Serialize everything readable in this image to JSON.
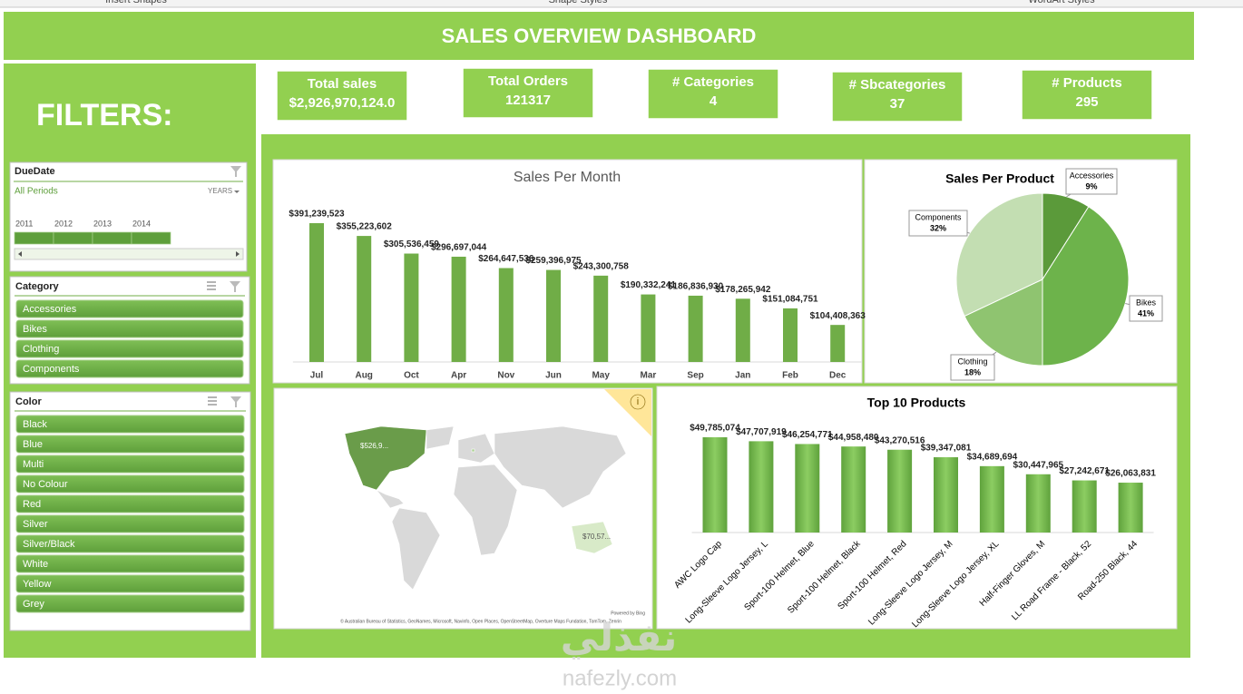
{
  "ribbon": [
    "Insert Shapes",
    "Shape Styles",
    "WordArt Styles"
  ],
  "header": {
    "title": "SALES OVERVIEW DASHBOARD"
  },
  "filters": {
    "title": "FILTERS:",
    "due_date": {
      "title": "DueDate",
      "selection": "All Periods",
      "level": "YEARS",
      "years": [
        2011,
        2012,
        2013,
        2014
      ]
    },
    "category": {
      "title": "Category",
      "items": [
        "Accessories",
        "Bikes",
        "Clothing",
        "Components"
      ]
    },
    "color": {
      "title": "Color",
      "items": [
        "Black",
        "Blue",
        "Multi",
        "No Colour",
        "Red",
        "Silver",
        "Silver/Black",
        "White",
        "Yellow",
        "Grey"
      ]
    }
  },
  "kpis": [
    {
      "label": "Total sales",
      "value": "$2,926,970,124.0"
    },
    {
      "label": "Total Orders",
      "value": 121317
    },
    {
      "label": "# Categories",
      "value": 4
    },
    {
      "label": "# Sbcategories",
      "value": 37
    },
    {
      "label": "# Products",
      "value": 295
    }
  ],
  "chart_data": [
    {
      "type": "bar",
      "title": "Sales Per Month",
      "categories": [
        "Jul",
        "Aug",
        "Oct",
        "Apr",
        "Nov",
        "Jun",
        "May",
        "Mar",
        "Sep",
        "Jan",
        "Feb",
        "Dec"
      ],
      "values": [
        391239523,
        355223602,
        305536459,
        296697044,
        264647536,
        259396975,
        243300758,
        190332241,
        186836930,
        178265942,
        151084751,
        104408363
      ],
      "value_labels": [
        "$391,239,523",
        "$355,223,602",
        "$305,536,459",
        "$296,697,044",
        "$264,647,536",
        "$259,396,975",
        "$243,300,758",
        "$190,332,241",
        "$186,836,930",
        "$178,265,942",
        "$151,084,751",
        "$104,408,363"
      ],
      "color": "#70ad47"
    },
    {
      "type": "pie",
      "title": "Sales Per Product",
      "categories": [
        "Accessories",
        "Bikes",
        "Clothing",
        "Components"
      ],
      "values": [
        9,
        41,
        18,
        32
      ],
      "value_labels": [
        "9%",
        "41%",
        "18%",
        "32%"
      ],
      "colors": [
        "#5b9a3a",
        "#6db34b",
        "#8fc470",
        "#c3deb2"
      ]
    },
    {
      "type": "bar",
      "title": "Top 10 Products",
      "categories": [
        "AWC Logo Cap",
        "Long-Sleeve Logo Jersey, L",
        "Sport-100 Helmet, Blue",
        "Sport-100 Helmet, Black",
        "Sport-100 Helmet, Red",
        "Long-Sleeve Logo Jersey, M",
        "Long-Sleeve Logo Jersey, XL",
        "Half-Finger Gloves, M",
        "LL Road Frame - Black, 52",
        "Road-250 Black, 44"
      ],
      "values": [
        49785074,
        47707919,
        46254771,
        44958480,
        43270516,
        39347081,
        34689694,
        30447965,
        27242671,
        26063831
      ],
      "value_labels": [
        "$49,785,074",
        "$47,707,919",
        "$46,254,771",
        "$44,958,480",
        "$43,270,516",
        "$39,347,081",
        "$34,689,694",
        "$30,447,965",
        "$27,242,671",
        "$26,063,831"
      ],
      "color": "#70ad47"
    }
  ],
  "map": {
    "labels": [
      "$526,9...",
      "$70,57..."
    ],
    "credit": "Powered by Bing",
    "attribution": "© Australian Bureau of Statistics, GeoNames, Microsoft, Navinfo, Open Places, OpenStreetMap, Overture Maps Fundation, TomTom, Zenrin"
  },
  "watermark": {
    "arabic": "نفذلي",
    "latin": "nafezly.com"
  }
}
